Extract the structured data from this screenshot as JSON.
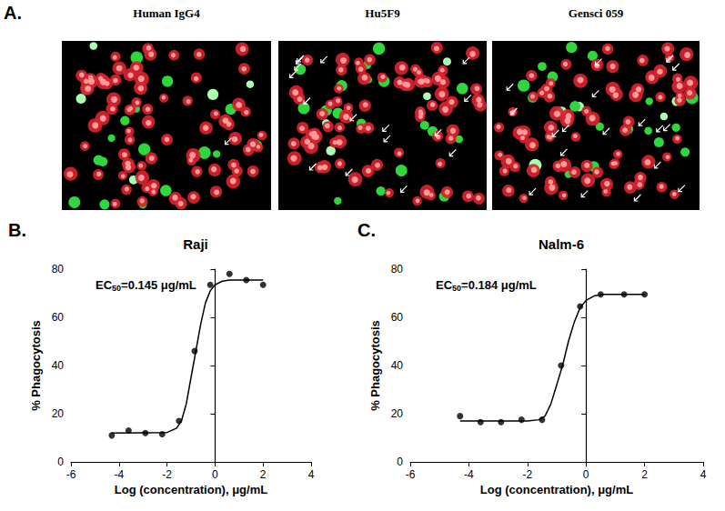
{
  "images": {
    "label": "A.",
    "titles": [
      "Human IgG4",
      "Hu5F9",
      "Gensci 059"
    ]
  },
  "chart_data": [
    {
      "label": "B.",
      "type": "scatter",
      "title": "Raji",
      "annotation": {
        "text": "EC",
        "sub": "50",
        "rest": "=0.145 μg/mL"
      },
      "x_label": "Log (concentration), μg/mL",
      "y_label": "% Phagocytosis",
      "x": [
        -4.3,
        -3.6,
        -2.9,
        -2.2,
        -1.5,
        -0.85,
        -0.2,
        0.6,
        1.3,
        2.0
      ],
      "values": [
        11,
        13,
        12,
        11.5,
        17,
        46,
        73.5,
        78,
        75.5,
        73.5
      ],
      "fit": {
        "x": [
          -4.3,
          -2,
          -1.6,
          -1.4,
          -1.2,
          -1.0,
          -0.8,
          -0.6,
          -0.4,
          -0.2,
          0,
          0.3,
          0.6,
          1,
          2
        ],
        "values": [
          12,
          12.2,
          14,
          17,
          24,
          35,
          46,
          57,
          66,
          71,
          73.5,
          75,
          75.5,
          75.5,
          75.5
        ]
      },
      "color": "#000000",
      "marker": "circle",
      "line_style": "solid",
      "xlim": [
        -6,
        4
      ],
      "xticks": [
        -6,
        -4,
        -2,
        0,
        2,
        4
      ],
      "ylim": [
        0,
        80
      ],
      "yticks": [
        0,
        20,
        40,
        60,
        80
      ],
      "grid": false
    },
    {
      "label": "C.",
      "type": "scatter",
      "title": "Nalm-6",
      "annotation": {
        "text": "EC",
        "sub": "50",
        "rest": "=0.184 μg/mL"
      },
      "x_label": "Log (concentration), μg/mL",
      "y_label": "% Phagocytosis",
      "x": [
        -4.3,
        -3.6,
        -2.9,
        -2.2,
        -1.5,
        -0.85,
        -0.2,
        0.5,
        1.3,
        2.0
      ],
      "values": [
        19,
        16.5,
        16.5,
        17.5,
        17.5,
        40,
        64.5,
        69.5,
        69.5,
        69.5
      ],
      "fit": {
        "x": [
          -4.3,
          -2,
          -1.6,
          -1.4,
          -1.2,
          -1.0,
          -0.8,
          -0.6,
          -0.4,
          -0.2,
          0,
          0.3,
          0.6,
          1,
          2
        ],
        "values": [
          17,
          17,
          17.5,
          19,
          24,
          32,
          40,
          50,
          58,
          64,
          67,
          69,
          69.5,
          69.5,
          69.5
        ]
      },
      "color": "#000000",
      "marker": "circle",
      "line_style": "solid",
      "xlim": [
        -6,
        4
      ],
      "xticks": [
        -6,
        -4,
        -2,
        0,
        2,
        4
      ],
      "ylim": [
        0,
        80
      ],
      "yticks": [
        0,
        20,
        40,
        60,
        80
      ],
      "grid": false
    }
  ]
}
